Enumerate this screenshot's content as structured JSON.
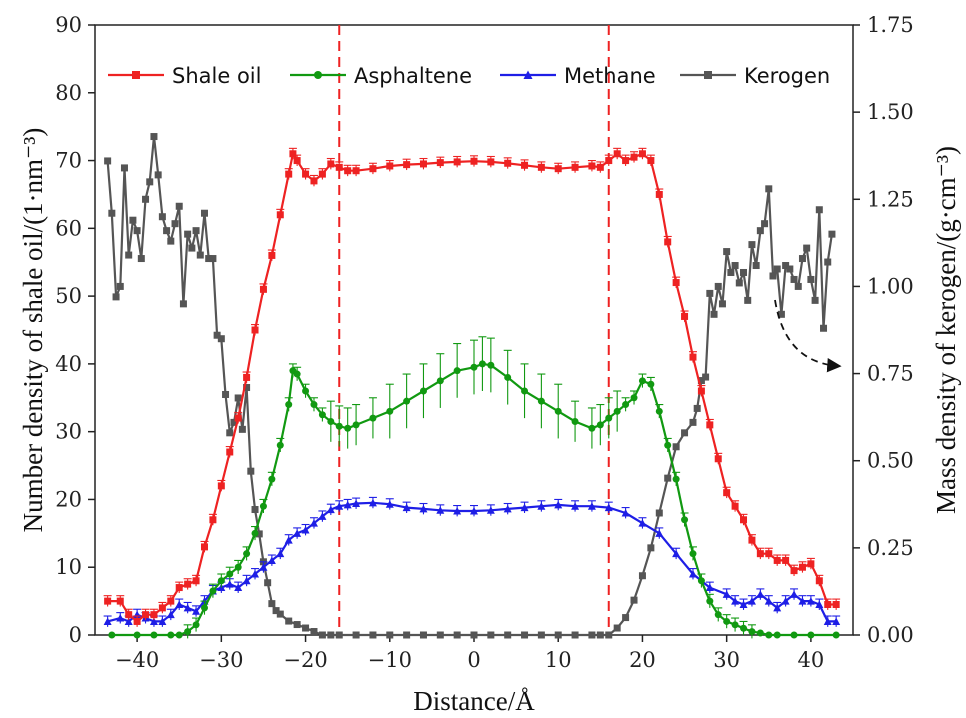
{
  "chart_data": {
    "type": "line",
    "xlabel": "Distance/Å",
    "ylabel_left": "Number density of shale oil/(1·nm⁻³)",
    "ylabel_right": "Mass density of kerogen/(g·cm⁻³)",
    "xlim": [
      -45,
      45
    ],
    "ylim_left": [
      0,
      90
    ],
    "ylim_right": [
      0,
      1.75
    ],
    "x_ticks": [
      -40,
      -30,
      -20,
      -10,
      0,
      10,
      20,
      30,
      40
    ],
    "y_ticks_left": [
      0,
      10,
      20,
      30,
      40,
      50,
      60,
      70,
      80,
      90
    ],
    "y_ticks_right": [
      "0.00",
      "0.25",
      "0.50",
      "0.75",
      "1.00",
      "1.25",
      "1.50",
      "1.75"
    ],
    "legend_position": "top",
    "vlines": [
      -16,
      16
    ],
    "colors": {
      "shale_oil": "#ee2222",
      "asphaltene": "#119911",
      "methane": "#1e1ee6",
      "kerogen": "#555555",
      "vline": "#ee2222"
    },
    "series": [
      {
        "name": "Shale oil",
        "axis": "left",
        "marker": "square",
        "color": "#ee2222",
        "x": [
          -43.5,
          -42,
          -41,
          -40,
          -39,
          -38,
          -37,
          -36,
          -35,
          -34,
          -33,
          -32,
          -31,
          -30,
          -29,
          -28,
          -27,
          -26,
          -25,
          -24,
          -23,
          -22,
          -21.5,
          -21,
          -20,
          -19,
          -18,
          -17,
          -16,
          -15,
          -14,
          -12,
          -10,
          -8,
          -6,
          -4,
          -2,
          0,
          2,
          4,
          6,
          8,
          10,
          12,
          14,
          15,
          16,
          17,
          18,
          19,
          20,
          21,
          22,
          23,
          24,
          25,
          26,
          27,
          28,
          29,
          30,
          31,
          32,
          33,
          34,
          35,
          36,
          37,
          38,
          39,
          40,
          41,
          42,
          43
        ],
        "y": [
          5,
          5,
          3,
          2,
          3,
          3,
          4,
          5,
          7,
          7.5,
          8,
          13,
          17,
          22,
          27,
          32,
          38,
          45,
          51,
          56,
          62,
          68,
          71,
          70,
          68,
          67,
          68,
          69.5,
          69,
          68.5,
          68.5,
          68.8,
          69.2,
          69.4,
          69.5,
          69.7,
          69.8,
          69.9,
          69.8,
          69.6,
          69.3,
          69,
          68.8,
          69,
          69.2,
          69,
          70,
          71,
          70,
          70.5,
          71,
          70,
          65,
          58,
          52,
          47,
          41,
          36,
          31,
          26,
          21,
          19,
          17,
          14,
          12,
          12,
          11,
          11,
          9.5,
          10,
          10.5,
          8,
          4.5,
          4.5
        ]
      },
      {
        "name": "Asphaltene",
        "axis": "left",
        "marker": "circle",
        "color": "#119911",
        "x": [
          -43,
          -40,
          -38,
          -36,
          -35,
          -34,
          -33,
          -32,
          -31,
          -30,
          -29,
          -28,
          -27,
          -26,
          -25,
          -24,
          -23,
          -22,
          -21.5,
          -21,
          -20,
          -19,
          -18,
          -17,
          -16,
          -15,
          -14,
          -12,
          -10,
          -8,
          -6,
          -4,
          -2,
          0,
          1,
          2,
          4,
          6,
          8,
          10,
          12,
          14,
          15,
          16,
          17,
          18,
          19,
          20,
          21,
          22,
          23,
          24,
          25,
          26,
          27,
          28,
          29,
          30,
          31,
          32,
          33,
          34,
          35,
          36,
          38,
          40,
          43
        ],
        "y": [
          0,
          0,
          0,
          0,
          0,
          0.5,
          1.5,
          4,
          6.5,
          8,
          9,
          10,
          12,
          15,
          19,
          23,
          28,
          34,
          39,
          38.5,
          36,
          34,
          32.5,
          31.5,
          30.8,
          30.5,
          31,
          32,
          33,
          34.5,
          36,
          37.5,
          39,
          39.5,
          40,
          39.8,
          38,
          36,
          34.5,
          33,
          31.5,
          30.5,
          31,
          32,
          33,
          34,
          35,
          37.5,
          37,
          33,
          28,
          23,
          17,
          12,
          8,
          5,
          3,
          2,
          1.5,
          1,
          0.5,
          0.3,
          0,
          0,
          0,
          0,
          0
        ]
      },
      {
        "name": "Methane",
        "axis": "left",
        "marker": "triangle",
        "color": "#1e1ee6",
        "x": [
          -43.5,
          -42,
          -41,
          -40,
          -39,
          -38,
          -37,
          -36,
          -35,
          -34,
          -33,
          -32,
          -31,
          -30,
          -29,
          -28,
          -27,
          -26,
          -25,
          -24,
          -23,
          -22,
          -21,
          -20,
          -19,
          -18,
          -17,
          -16,
          -15,
          -14,
          -12,
          -10,
          -8,
          -6,
          -4,
          -2,
          0,
          2,
          4,
          6,
          8,
          10,
          12,
          14,
          16,
          18,
          20,
          22,
          24,
          26,
          28,
          30,
          31,
          32,
          33,
          34,
          35,
          36,
          37,
          38,
          39,
          40,
          41,
          42,
          43
        ],
        "y": [
          2,
          2.5,
          2,
          3,
          2.5,
          2,
          2,
          3,
          4.5,
          4,
          3.5,
          5,
          6.5,
          7,
          7.5,
          7,
          8,
          9,
          10,
          11,
          12,
          14,
          15,
          15.5,
          16.5,
          17.5,
          18.5,
          19,
          19.2,
          19.4,
          19.5,
          19.3,
          18.8,
          18.6,
          18.4,
          18.3,
          18.3,
          18.4,
          18.6,
          18.8,
          19,
          19.2,
          19,
          19,
          18.8,
          18,
          16.5,
          15,
          12,
          9,
          7,
          6,
          5,
          4.5,
          5,
          6,
          5,
          4,
          5,
          6,
          5,
          5,
          4.5,
          2,
          2
        ]
      },
      {
        "name": "Kerogen",
        "axis": "right",
        "marker": "square",
        "color": "#555555",
        "x": [
          -43.5,
          -43,
          -42.5,
          -42,
          -41.5,
          -41,
          -40.5,
          -40,
          -39.5,
          -39,
          -38.5,
          -38,
          -37.5,
          -37,
          -36.5,
          -36,
          -35.5,
          -35,
          -34.5,
          -34,
          -33.5,
          -33,
          -32.5,
          -32,
          -31.5,
          -31,
          -30.5,
          -30,
          -29.5,
          -29,
          -28.5,
          -28,
          -27.5,
          -27,
          -26.5,
          -26,
          -25.5,
          -25,
          -24.5,
          -24,
          -23.5,
          -23,
          -22,
          -21,
          -20,
          -19,
          -18,
          -17,
          -16,
          -14,
          -12,
          -10,
          -8,
          -6,
          -4,
          -2,
          0,
          2,
          4,
          6,
          8,
          10,
          12,
          14,
          15,
          16,
          17,
          18,
          19,
          20,
          21,
          22,
          23,
          24,
          25,
          26,
          26.5,
          27,
          27.5,
          28,
          28.5,
          29,
          29.5,
          30,
          30.5,
          31,
          31.5,
          32,
          32.5,
          33,
          33.5,
          34,
          34.5,
          35,
          35.5,
          36,
          36.5,
          37,
          37.5,
          38,
          38.5,
          39,
          39.5,
          40,
          40.5,
          41,
          41.5,
          42,
          42.5
        ],
        "y": [
          1.36,
          1.21,
          0.97,
          1.0,
          1.34,
          1.09,
          1.19,
          1.16,
          1.08,
          1.25,
          1.3,
          1.43,
          1.32,
          1.2,
          1.16,
          1.13,
          1.18,
          1.23,
          0.95,
          1.15,
          1.11,
          1.16,
          1.09,
          1.21,
          1.08,
          1.08,
          0.86,
          0.85,
          0.69,
          0.58,
          0.61,
          0.68,
          0.59,
          0.71,
          0.47,
          0.36,
          0.29,
          0.21,
          0.15,
          0.09,
          0.07,
          0.06,
          0.04,
          0.03,
          0.02,
          0.01,
          0.0,
          0.0,
          0.0,
          0.0,
          0.0,
          0.0,
          0.0,
          0.0,
          0.0,
          0.0,
          0.0,
          0.0,
          0.0,
          0.0,
          0.0,
          0.0,
          0.0,
          0.0,
          0.0,
          0.0,
          0.02,
          0.05,
          0.1,
          0.17,
          0.25,
          0.35,
          0.45,
          0.54,
          0.58,
          0.61,
          0.65,
          0.73,
          0.74,
          0.98,
          0.92,
          1.0,
          0.95,
          1.1,
          1.04,
          1.06,
          1.01,
          1.04,
          0.96,
          1.12,
          1.06,
          1.16,
          1.18,
          1.28,
          1.03,
          1.05,
          0.92,
          1.06,
          1.05,
          1.02,
          1.0,
          1.08,
          1.11,
          1.02,
          0.96,
          1.22,
          0.88,
          1.07,
          1.15
        ]
      }
    ]
  }
}
